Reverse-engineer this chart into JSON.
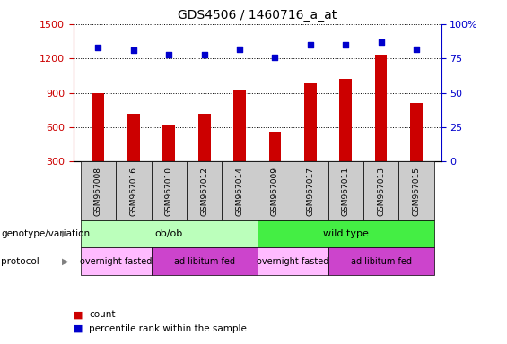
{
  "title": "GDS4506 / 1460716_a_at",
  "samples": [
    "GSM967008",
    "GSM967016",
    "GSM967010",
    "GSM967012",
    "GSM967014",
    "GSM967009",
    "GSM967017",
    "GSM967011",
    "GSM967013",
    "GSM967015"
  ],
  "counts": [
    895,
    720,
    625,
    720,
    920,
    565,
    980,
    1020,
    1230,
    810
  ],
  "percentiles": [
    83,
    81,
    78,
    78,
    82,
    76,
    85,
    85,
    87,
    82
  ],
  "ylim_left": [
    300,
    1500
  ],
  "ylim_right": [
    0,
    100
  ],
  "yticks_left": [
    300,
    600,
    900,
    1200,
    1500
  ],
  "yticks_right": [
    0,
    25,
    50,
    75,
    100
  ],
  "bar_color": "#cc0000",
  "dot_color": "#0000cc",
  "genotype_groups": [
    {
      "label": "ob/ob",
      "start": 0,
      "end": 5,
      "color": "#bbffbb"
    },
    {
      "label": "wild type",
      "start": 5,
      "end": 10,
      "color": "#44ee44"
    }
  ],
  "protocol_groups": [
    {
      "label": "overnight fasted",
      "start": 0,
      "end": 2,
      "color": "#ffbbff"
    },
    {
      "label": "ad libitum fed",
      "start": 2,
      "end": 5,
      "color": "#cc44cc"
    },
    {
      "label": "overnight fasted",
      "start": 5,
      "end": 7,
      "color": "#ffbbff"
    },
    {
      "label": "ad libitum fed",
      "start": 7,
      "end": 10,
      "color": "#cc44cc"
    }
  ],
  "tick_color_left": "#cc0000",
  "tick_color_right": "#0000cc",
  "sample_bg": "#cccccc",
  "left_labels": [
    "genotype/variation",
    "protocol"
  ],
  "legend": [
    {
      "color": "#cc0000",
      "label": "count"
    },
    {
      "color": "#0000cc",
      "label": "percentile rank within the sample"
    }
  ]
}
